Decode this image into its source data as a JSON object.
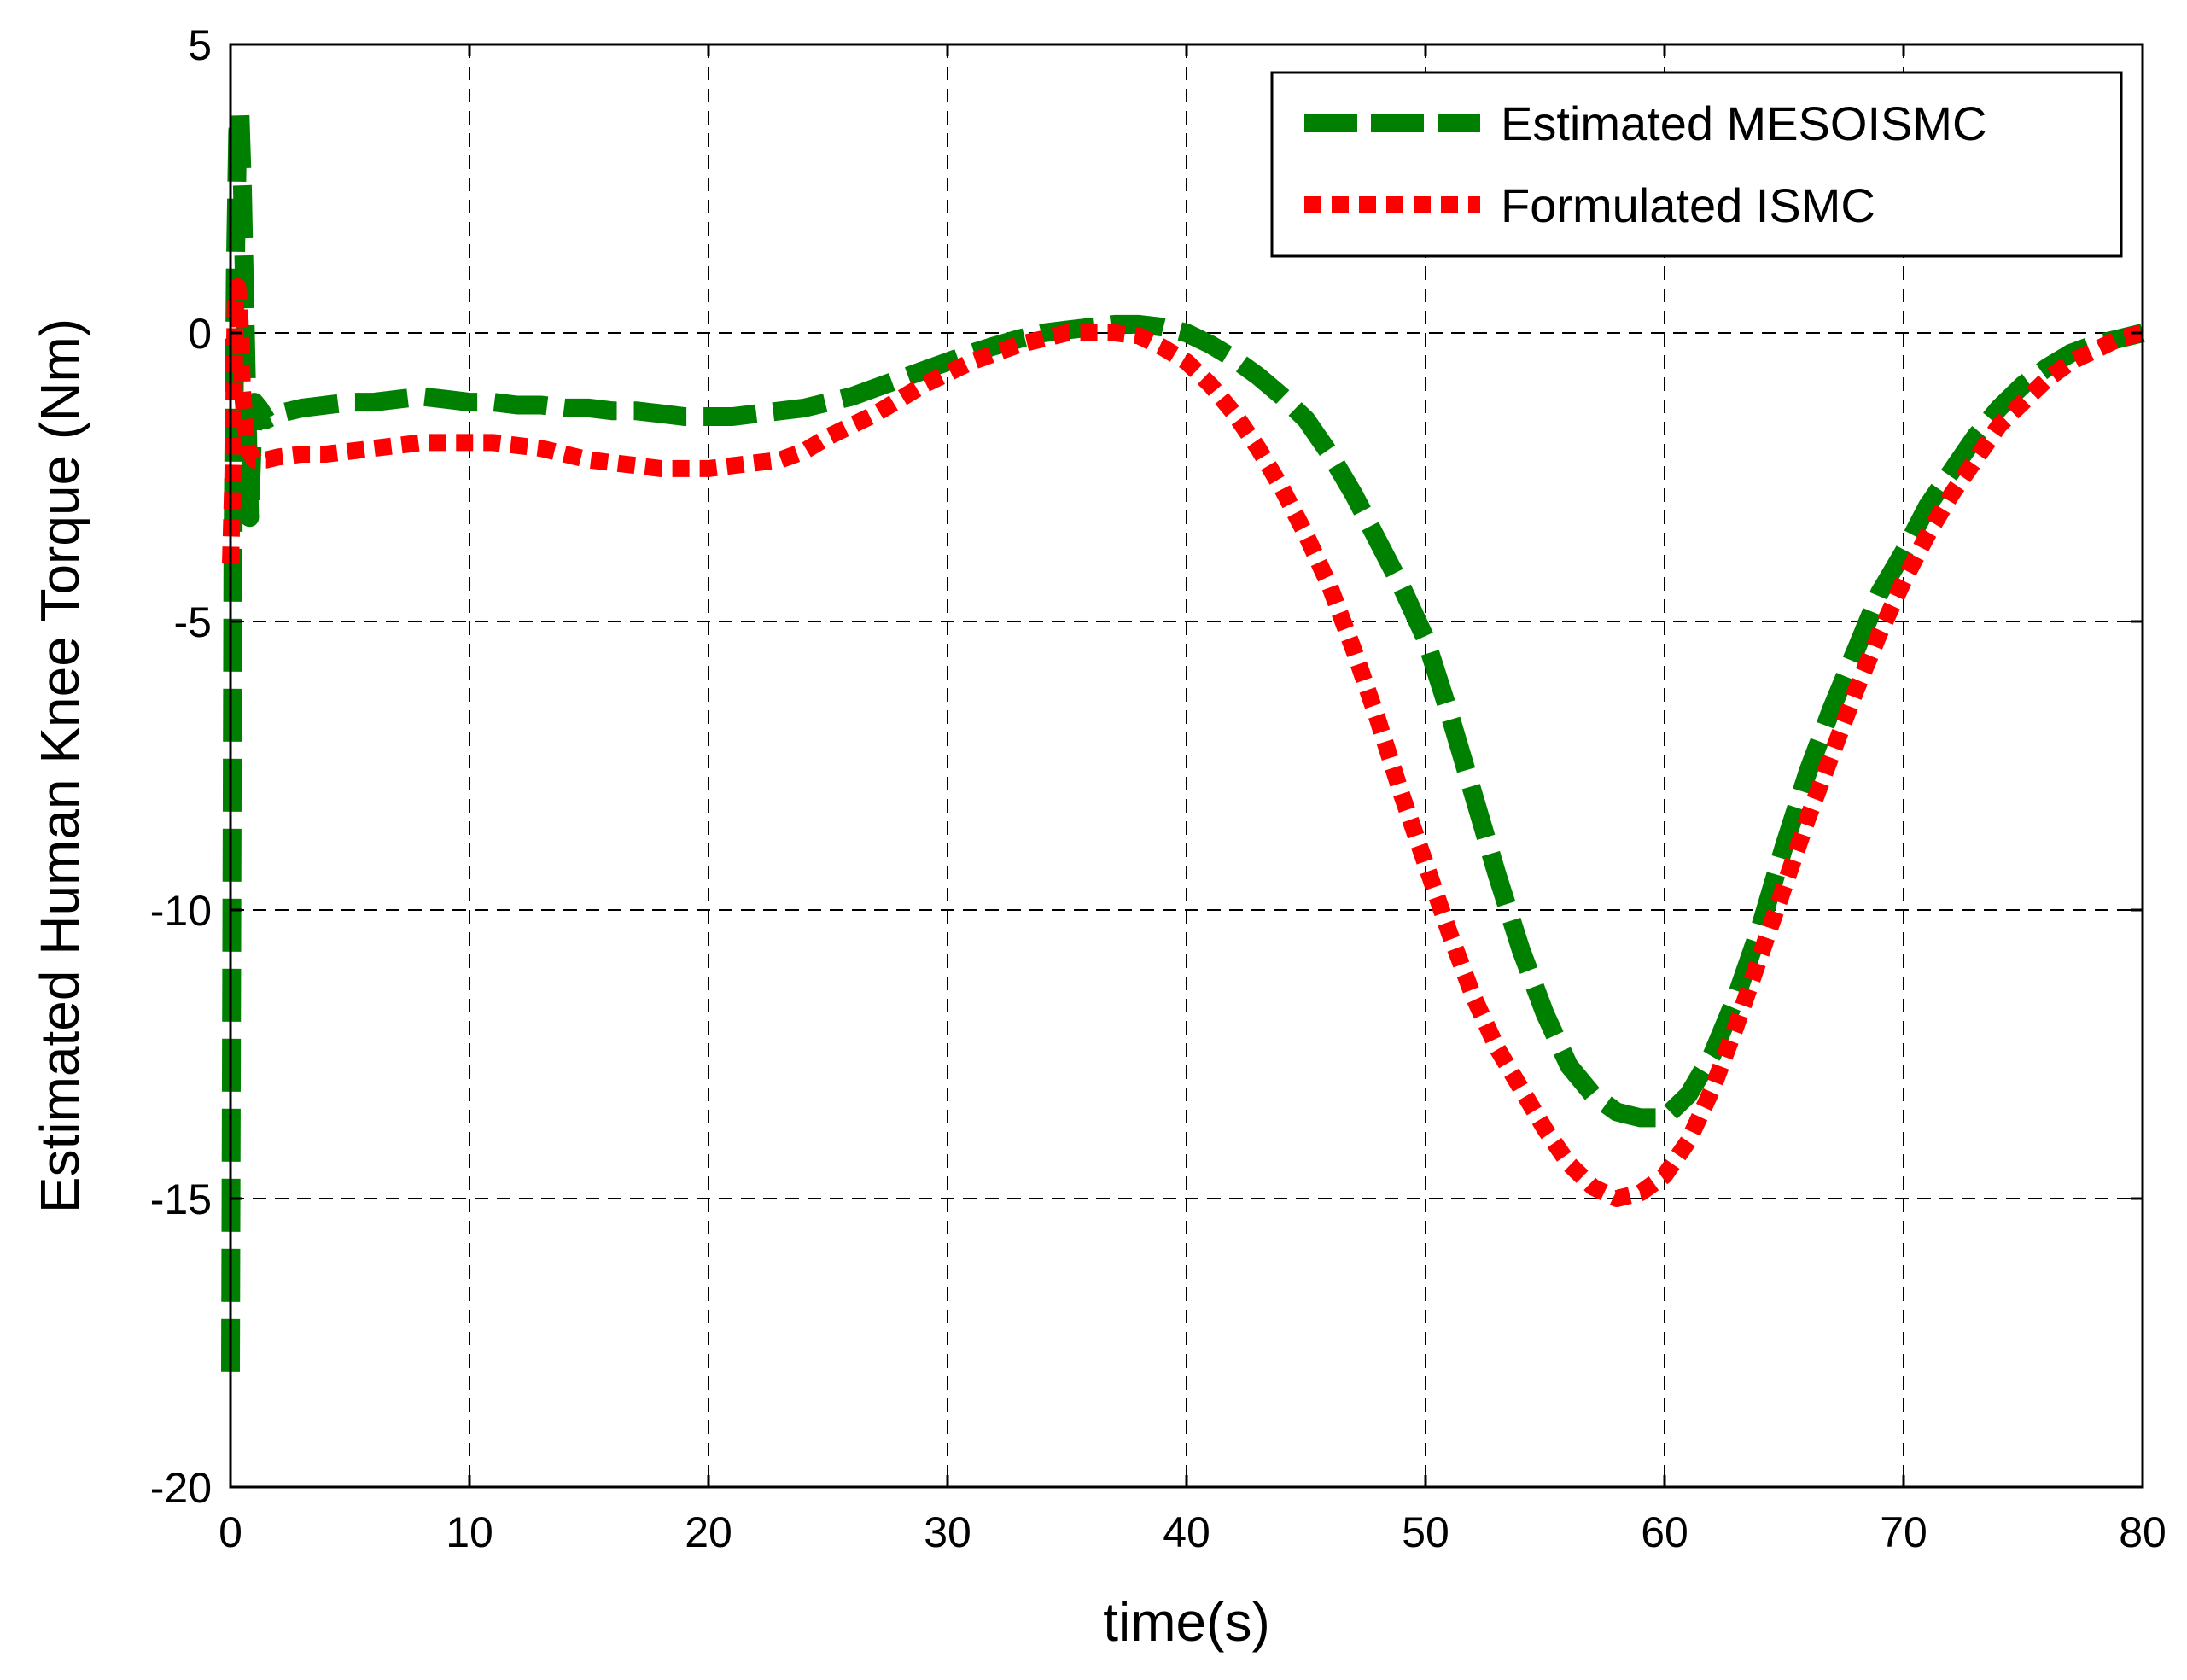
{
  "chart_data": {
    "type": "line",
    "title": "",
    "xlabel": "time(s)",
    "ylabel": "Estimated Human Knee Torque (Nm)",
    "xlim": [
      0,
      80
    ],
    "ylim": [
      -20,
      5
    ],
    "xticks": [
      0,
      10,
      20,
      30,
      40,
      50,
      60,
      70,
      80
    ],
    "yticks": [
      -20,
      -15,
      -10,
      -5,
      0,
      5
    ],
    "grid": true,
    "legend_position": "top-right",
    "series": [
      {
        "name": "Estimated MESOISMC",
        "color": "#008000",
        "style": "dashed",
        "x": [
          0,
          0.1,
          0.2,
          0.3,
          0.4,
          0.5,
          0.6,
          0.7,
          0.8,
          0.9,
          1.0,
          1.2,
          1.5,
          2,
          3,
          4,
          5,
          6,
          7,
          8,
          9,
          10,
          11,
          12,
          13,
          14,
          15,
          16,
          17,
          18,
          19,
          20,
          21,
          22,
          23,
          24,
          25,
          26,
          27,
          28,
          29,
          30,
          31,
          32,
          33,
          34,
          35,
          36,
          37,
          38,
          39,
          40,
          41,
          42,
          43,
          44,
          45,
          46,
          47,
          48,
          49,
          50,
          51,
          52,
          53,
          54,
          55,
          56,
          57,
          58,
          59,
          60,
          61,
          62,
          63,
          64,
          65,
          66,
          67,
          68,
          69,
          70,
          71,
          72,
          73,
          74,
          75,
          76,
          77,
          78,
          79,
          80
        ],
        "y": [
          -18,
          -4,
          1,
          3.5,
          3.8,
          2.5,
          0.5,
          -1.5,
          -3.2,
          -2.0,
          -1.2,
          -1.3,
          -1.5,
          -1.4,
          -1.3,
          -1.25,
          -1.2,
          -1.2,
          -1.15,
          -1.1,
          -1.15,
          -1.2,
          -1.2,
          -1.25,
          -1.25,
          -1.3,
          -1.3,
          -1.35,
          -1.35,
          -1.4,
          -1.45,
          -1.45,
          -1.45,
          -1.4,
          -1.35,
          -1.3,
          -1.2,
          -1.1,
          -0.95,
          -0.8,
          -0.65,
          -0.5,
          -0.35,
          -0.22,
          -0.1,
          0.0,
          0.05,
          0.1,
          0.15,
          0.15,
          0.1,
          0.0,
          -0.2,
          -0.45,
          -0.75,
          -1.1,
          -1.5,
          -2.1,
          -2.8,
          -3.6,
          -4.4,
          -5.3,
          -6.6,
          -8.0,
          -9.4,
          -10.7,
          -11.8,
          -12.7,
          -13.2,
          -13.5,
          -13.6,
          -13.6,
          -13.2,
          -12.5,
          -11.5,
          -10.3,
          -8.9,
          -7.6,
          -6.5,
          -5.5,
          -4.5,
          -3.8,
          -3.0,
          -2.4,
          -1.8,
          -1.3,
          -0.9,
          -0.6,
          -0.35,
          -0.2,
          -0.1,
          0.0
        ]
      },
      {
        "name": "Formulated ISMC",
        "color": "#ff0000",
        "style": "dotted",
        "x": [
          0,
          0.1,
          0.2,
          0.3,
          0.4,
          0.5,
          0.7,
          1.0,
          1.5,
          2,
          3,
          4,
          5,
          6,
          7,
          8,
          9,
          10,
          11,
          12,
          13,
          14,
          15,
          16,
          17,
          18,
          19,
          20,
          21,
          22,
          23,
          24,
          25,
          26,
          27,
          28,
          29,
          30,
          31,
          32,
          33,
          34,
          35,
          36,
          37,
          38,
          39,
          40,
          41,
          42,
          43,
          44,
          45,
          46,
          47,
          48,
          49,
          50,
          51,
          52,
          53,
          54,
          55,
          56,
          57,
          58,
          59,
          60,
          61,
          62,
          63,
          64,
          65,
          66,
          67,
          68,
          69,
          70,
          71,
          72,
          73,
          74,
          75,
          76,
          77,
          78,
          79,
          80
        ],
        "y": [
          -4,
          -2.5,
          0.5,
          0.8,
          0.2,
          -1.0,
          -2.0,
          -2.2,
          -2.2,
          -2.15,
          -2.1,
          -2.1,
          -2.05,
          -2.0,
          -1.95,
          -1.9,
          -1.9,
          -1.9,
          -1.9,
          -1.95,
          -2.0,
          -2.1,
          -2.2,
          -2.25,
          -2.3,
          -2.35,
          -2.35,
          -2.35,
          -2.3,
          -2.25,
          -2.2,
          -2.05,
          -1.8,
          -1.6,
          -1.4,
          -1.15,
          -0.9,
          -0.7,
          -0.5,
          -0.35,
          -0.2,
          -0.1,
          0.0,
          0.0,
          0.0,
          -0.05,
          -0.25,
          -0.5,
          -0.9,
          -1.4,
          -2.0,
          -2.7,
          -3.5,
          -4.4,
          -5.5,
          -6.7,
          -8.0,
          -9.2,
          -10.4,
          -11.5,
          -12.4,
          -13.1,
          -13.8,
          -14.4,
          -14.8,
          -15.0,
          -14.9,
          -14.6,
          -14.0,
          -13.1,
          -12.0,
          -10.8,
          -9.6,
          -8.4,
          -7.3,
          -6.2,
          -5.2,
          -4.3,
          -3.5,
          -2.8,
          -2.2,
          -1.6,
          -1.2,
          -0.8,
          -0.5,
          -0.3,
          -0.1,
          0.0
        ]
      }
    ]
  }
}
